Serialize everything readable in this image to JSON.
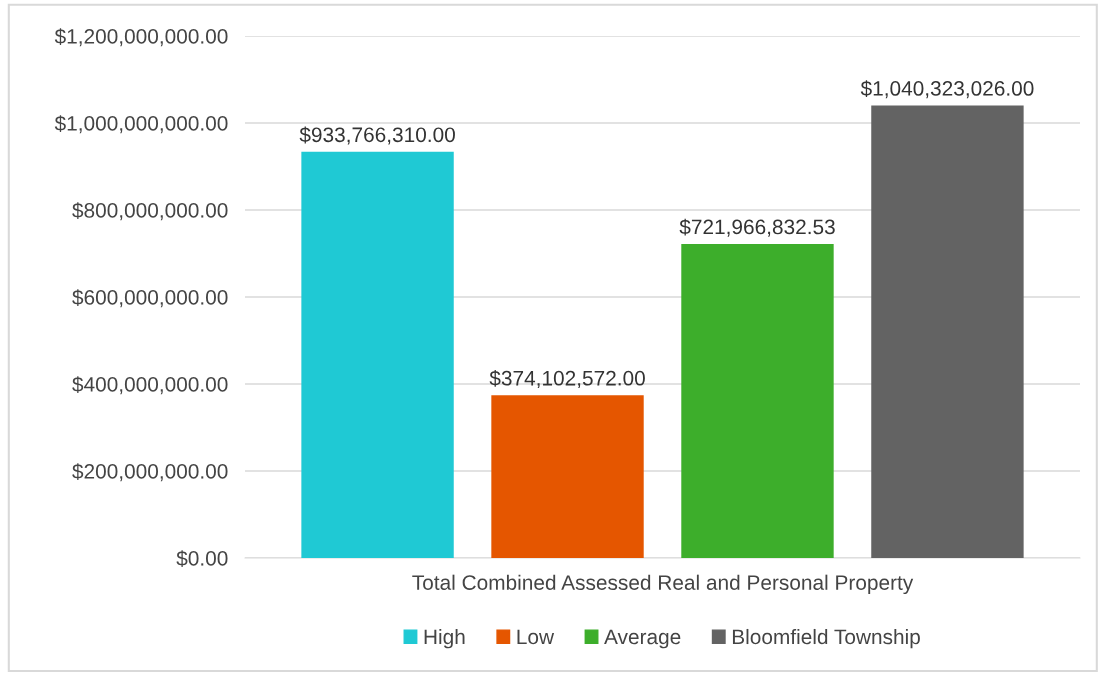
{
  "chart_data": {
    "type": "bar",
    "categories": [
      "Total Combined Assessed Real and Personal Property"
    ],
    "series": [
      {
        "name": "High",
        "color": "#1fc9d4",
        "values": [
          933766310.0
        ],
        "value_labels": [
          "$933,766,310.00"
        ]
      },
      {
        "name": "Low",
        "color": "#e55600",
        "values": [
          374102572.0
        ],
        "value_labels": [
          "$374,102,572.00"
        ]
      },
      {
        "name": "Average",
        "color": "#3dae2b",
        "values": [
          721966832.53
        ],
        "value_labels": [
          "$721,966,832.53"
        ]
      },
      {
        "name": "Bloomfield Township",
        "color": "#636363",
        "values": [
          1040323026.0
        ],
        "value_labels": [
          "$1,040,323,026.00"
        ]
      }
    ],
    "ylim": [
      0,
      1200000000
    ],
    "yticks": [
      {
        "value": 0,
        "label": "$0.00"
      },
      {
        "value": 200000000,
        "label": "$200,000,000.00"
      },
      {
        "value": 400000000,
        "label": "$400,000,000.00"
      },
      {
        "value": 600000000,
        "label": "$600,000,000.00"
      },
      {
        "value": 800000000,
        "label": "$800,000,000.00"
      },
      {
        "value": 1000000000,
        "label": "$1,000,000,000.00"
      },
      {
        "value": 1200000000,
        "label": "$1,200,000,000.00"
      }
    ],
    "grid": "y",
    "legend": "bottom"
  }
}
